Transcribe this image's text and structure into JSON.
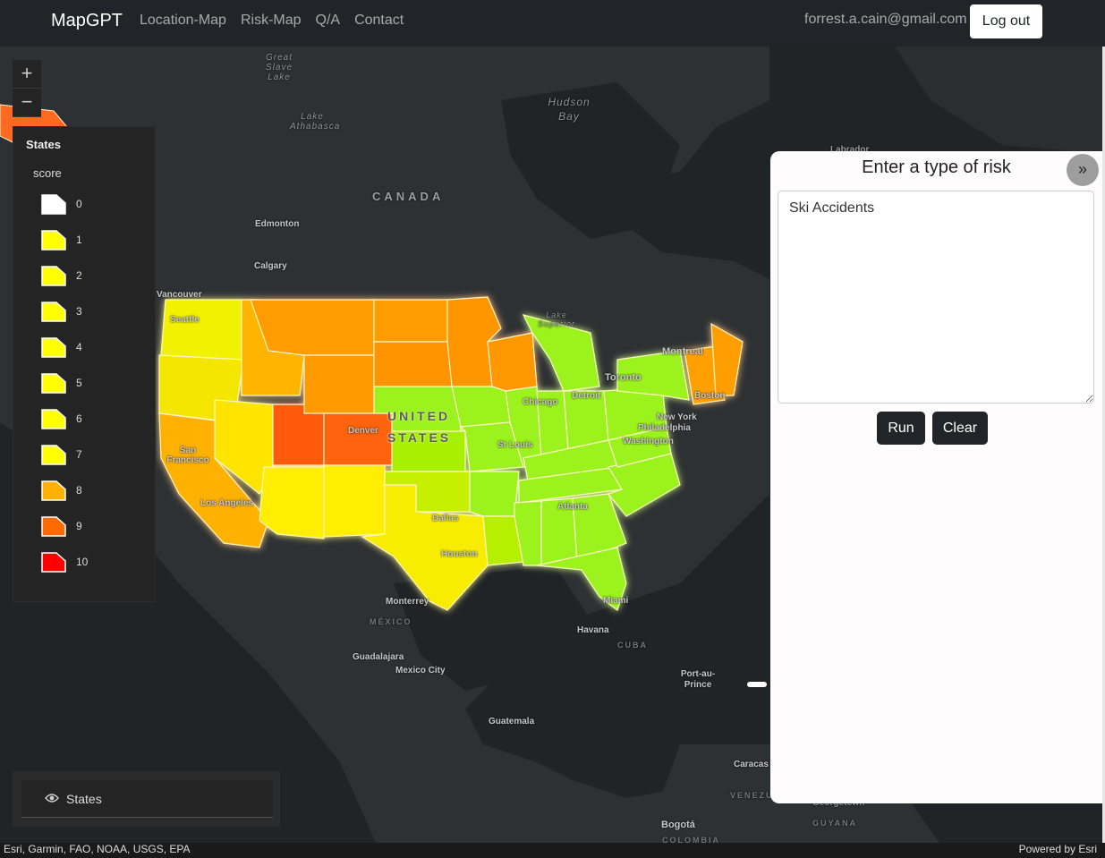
{
  "navbar": {
    "brand": "MapGPT",
    "links": [
      "Location-Map",
      "Risk-Map",
      "Q/A",
      "Contact"
    ],
    "user_email": "forrest.a.cain@gmail.com",
    "logout_label": "Log out"
  },
  "map": {
    "zoom_in": "+",
    "zoom_out": "−",
    "labels": {
      "great_slave_lake": "Great Slave Lake",
      "lake_athabasca": "Lake Athabasca",
      "hudson_bay": "Hudson Bay",
      "labrador": "Labrador",
      "canada": "CANADA",
      "edmonton": "Edmonton",
      "calgary": "Calgary",
      "vancouver": "Vancouver",
      "seattle": "Seattle",
      "lake_superior": "Lake Superior",
      "montreal": "Montreal",
      "toronto": "Toronto",
      "boston": "Boston",
      "chicago": "Chicago",
      "detroit": "Detroit",
      "new_york": "New York",
      "philadelphia": "Philadelphia",
      "washington": "Washington",
      "united": "UNITED",
      "states": "STATES",
      "denver": "Denver",
      "san_francisco": "San Francisco",
      "st_louis": "St Louis",
      "los_angeles": "Los Angeles",
      "atlanta": "Atlanta",
      "dallas": "Dallas",
      "houston": "Houston",
      "miami": "Miami",
      "monterrey": "Monterrey",
      "mexico": "MÉXICO",
      "havana": "Havana",
      "cuba": "CUBA",
      "guadalajara": "Guadalajara",
      "mexico_city": "Mexico City",
      "port_au_prince": "Port-au-Prince",
      "guatemala": "Guatemala",
      "caracas": "Caracas",
      "venezuela": "VENEZU",
      "georgetown": "Georgetown",
      "guyana": "GUYANA",
      "bogota": "Bogotá",
      "colombia": "COLOMBIA"
    }
  },
  "legend": {
    "title": "States",
    "field": "score",
    "items": [
      {
        "label": "0",
        "color": "#ffffff"
      },
      {
        "label": "1",
        "color": "#ffff00"
      },
      {
        "label": "2",
        "color": "#ffff00"
      },
      {
        "label": "3",
        "color": "#ffff00"
      },
      {
        "label": "4",
        "color": "#ffff00"
      },
      {
        "label": "5",
        "color": "#ffff00"
      },
      {
        "label": "6",
        "color": "#ffff00"
      },
      {
        "label": "7",
        "color": "#ffff00"
      },
      {
        "label": "8",
        "color": "#ffb000"
      },
      {
        "label": "9",
        "color": "#ff6a00"
      },
      {
        "label": "10",
        "color": "#ff0000"
      }
    ]
  },
  "layer_list": {
    "layer_name": "States"
  },
  "attribution": {
    "sources": "Esri, Garmin, FAO, NOAA, USGS, EPA",
    "powered_by": "Powered by Esri"
  },
  "panel": {
    "title": "Enter a type of risk",
    "collapse_icon": "»",
    "input_value": "Ski Accidents",
    "run_label": "Run",
    "clear_label": "Clear"
  },
  "colors": {
    "navbar": "#212529",
    "map_bg": "#202427",
    "land": "#2c2f31",
    "score_low": "#9cf21c",
    "score_mid": "#ffee00",
    "score_high": "#ff8c00",
    "score_max": "#ff4a10"
  }
}
